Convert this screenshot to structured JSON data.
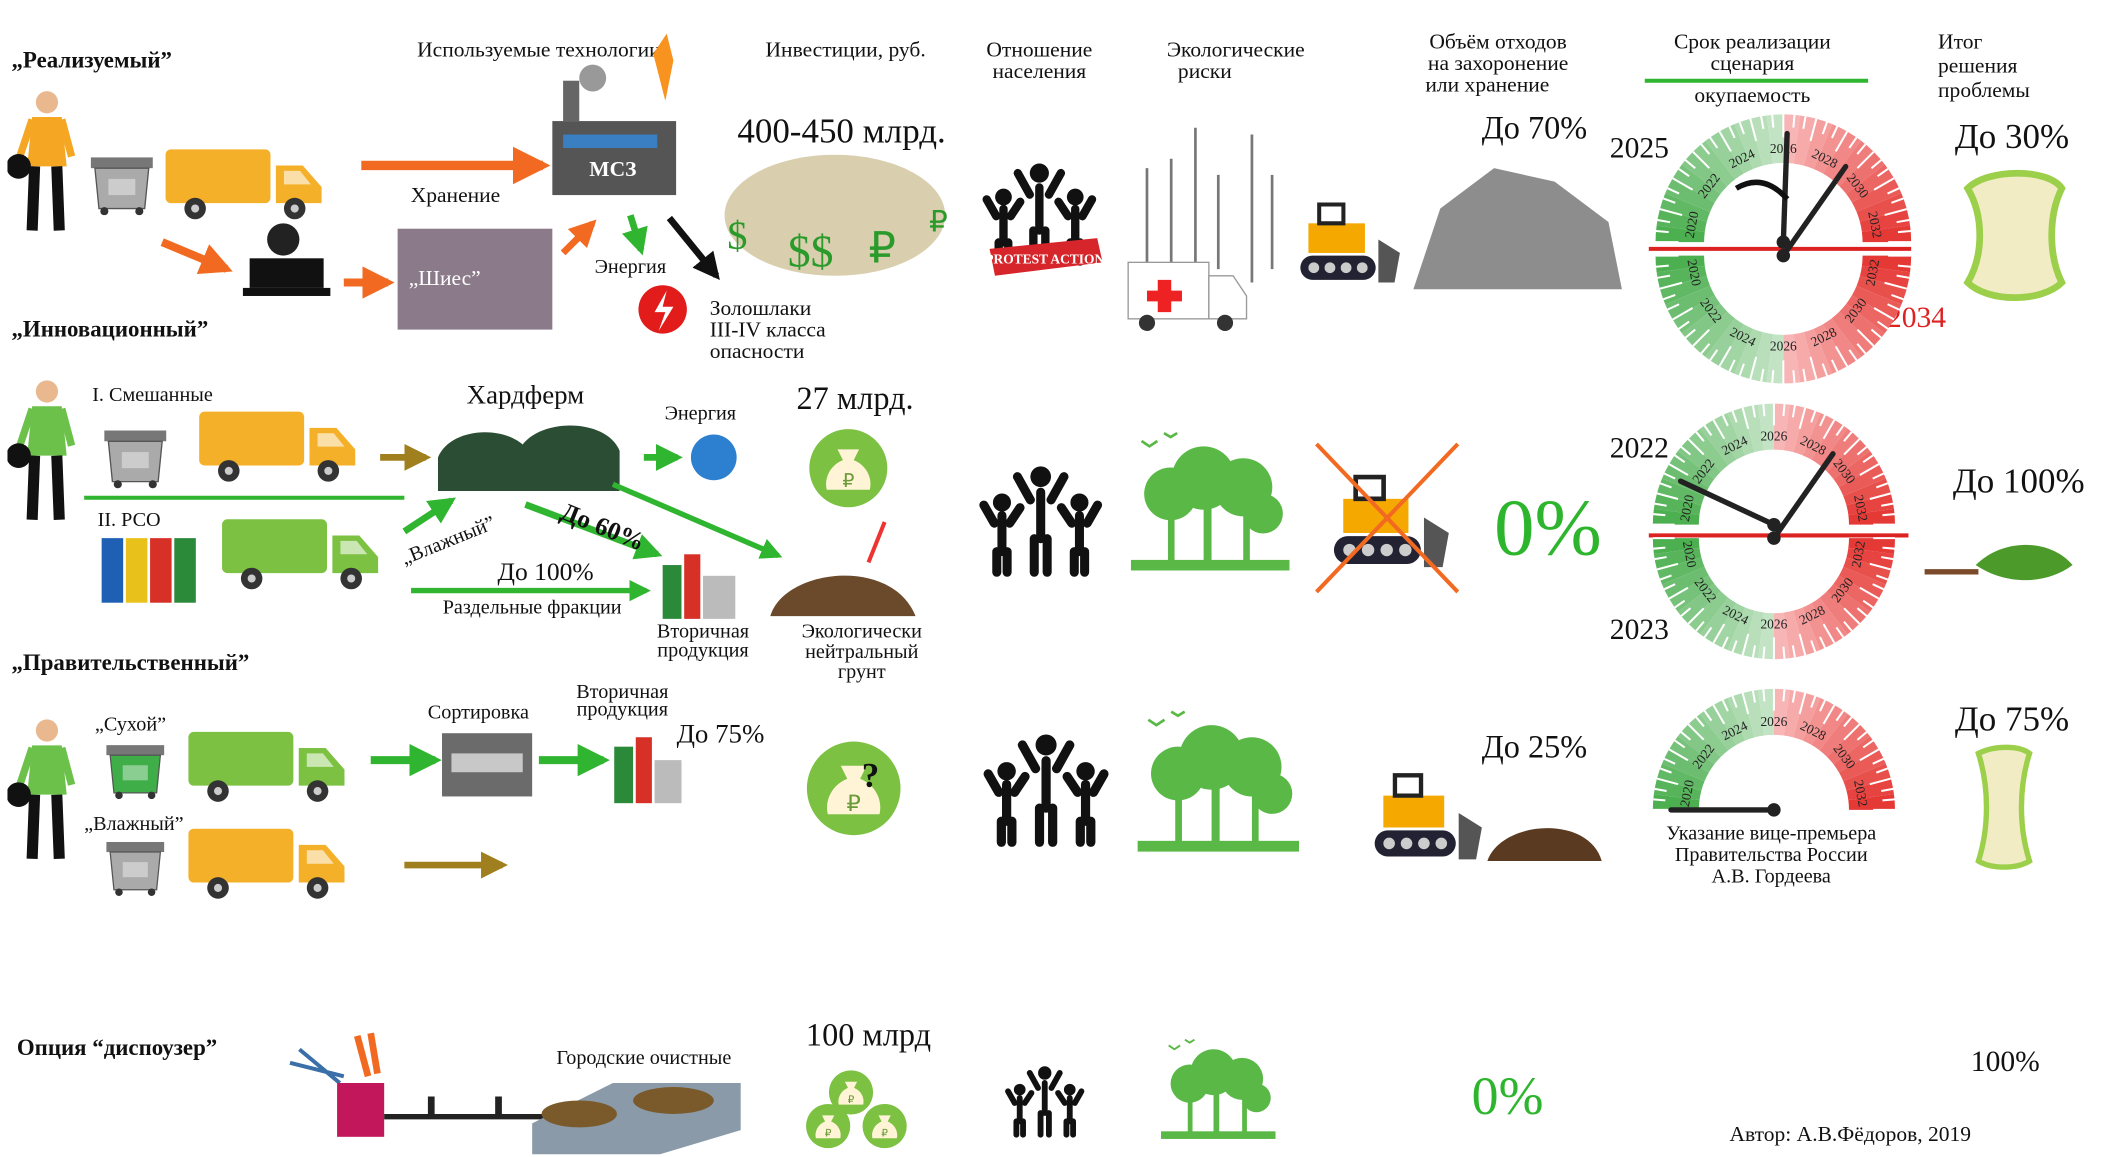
{
  "headers": {
    "technologies": "Используемые технологии",
    "investments": "Инвестиции, руб.",
    "attitude": [
      "Отношение",
      "населения"
    ],
    "risks": [
      "Экологические",
      "риски"
    ],
    "volume": [
      "Объём отходов",
      "на захоронение",
      "или хранение"
    ],
    "timeline": [
      "Срок реализации",
      "сценария"
    ],
    "payback": "окупаемость",
    "result": [
      "Итог",
      "решения",
      "проблемы"
    ]
  },
  "gauge_ticks": [
    "2020",
    "2022",
    "2024",
    "2026",
    "2028",
    "2030",
    "2032"
  ],
  "scenarios": [
    {
      "name": "„Реализуемый”",
      "storage": "Хранение",
      "plant": "МСЗ",
      "site": "„Шиес”",
      "energy": "Энергия",
      "ash": [
        "Золошлаки",
        "III-IV класса",
        "опасности"
      ],
      "investment": "400-450 млрд.",
      "protest": "PROTEST ACTION",
      "volume": "До 70%",
      "start_year": "2025",
      "end_year": "2034",
      "result": "До 30%"
    },
    {
      "name": "„Инновационный”",
      "mixed": "I. Смешанные",
      "separate": "II. РСО",
      "technology": "Хардферм",
      "energy": "Энергия",
      "wet": "„Влажный”",
      "wet_share": "До 60%",
      "fraction_share": "До 100%",
      "fractions": "Раздельные фракции",
      "secondary": [
        "Вторичная",
        "продукция"
      ],
      "soil": [
        "Экологически",
        "нейтральный",
        "грунт"
      ],
      "investment": "27 млрд.",
      "volume": "0%",
      "start_year": "2022",
      "end_year": "2023",
      "result": "До 100%"
    },
    {
      "name": "„Правительственный”",
      "dry": "„Сухой”",
      "wet": "„Влажный”",
      "sorting": "Сортировка",
      "secondary": [
        "Вторичная",
        "продукция"
      ],
      "secondary_share": "До 75%",
      "volume": "До 25%",
      "note": [
        "Указание вице-премьера",
        "Правительства России",
        "А.В. Гордеева"
      ],
      "result": "До 75%"
    }
  ],
  "option": {
    "name": "Опция “диспоузер”",
    "treatment": "Городские очистные",
    "investment": "100 млрд",
    "volume": "0%",
    "result": "100%"
  },
  "author": "Автор: А.В.Фёдоров, 2019"
}
